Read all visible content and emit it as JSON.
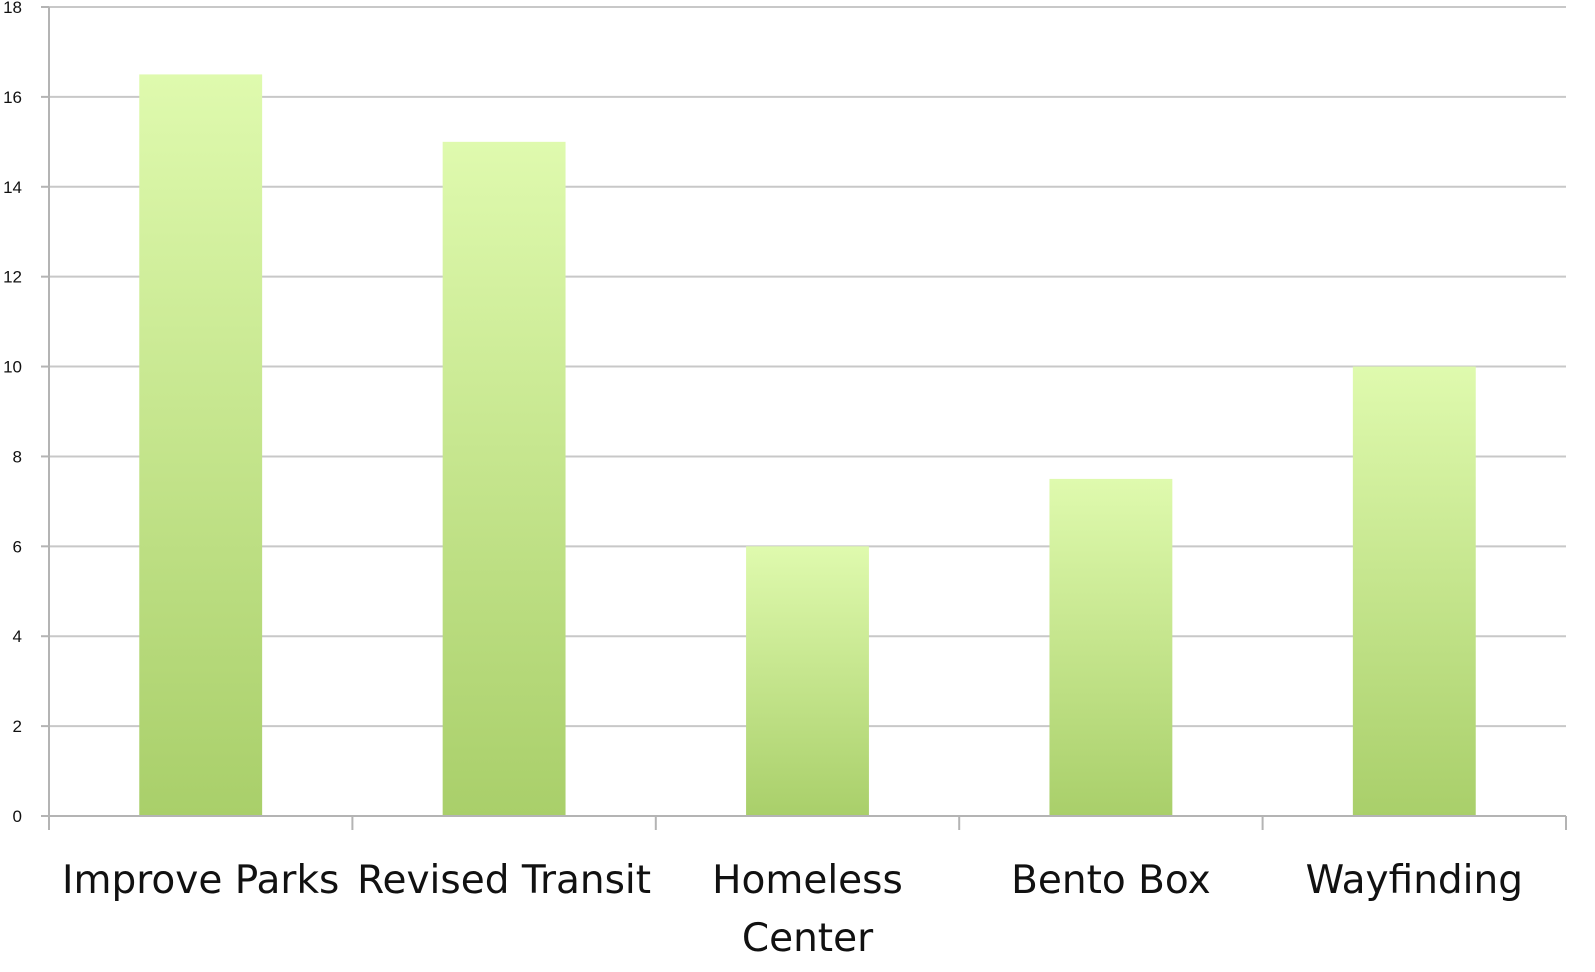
{
  "chart_data": {
    "type": "bar",
    "title": "",
    "xlabel": "",
    "ylabel": "",
    "categories": [
      "Improve Parks",
      "Revised Transit",
      "Homeless Center",
      "Bento Box",
      "Wayfinding"
    ],
    "category_label_lines": [
      [
        "Improve Parks"
      ],
      [
        "Revised Transit"
      ],
      [
        "Homeless",
        "Center"
      ],
      [
        "Bento Box"
      ],
      [
        "Wayfinding"
      ]
    ],
    "values": [
      16.5,
      15,
      6,
      7.5,
      10
    ],
    "ylim": [
      0,
      18
    ],
    "yticks": [
      0,
      2,
      4,
      6,
      8,
      10,
      12,
      14,
      16,
      18
    ],
    "grid": true,
    "legend": "none",
    "bar_color_top": "#dffaae",
    "bar_color_bottom": "#a9cf6a",
    "grid_color": "#c8c8c8"
  }
}
